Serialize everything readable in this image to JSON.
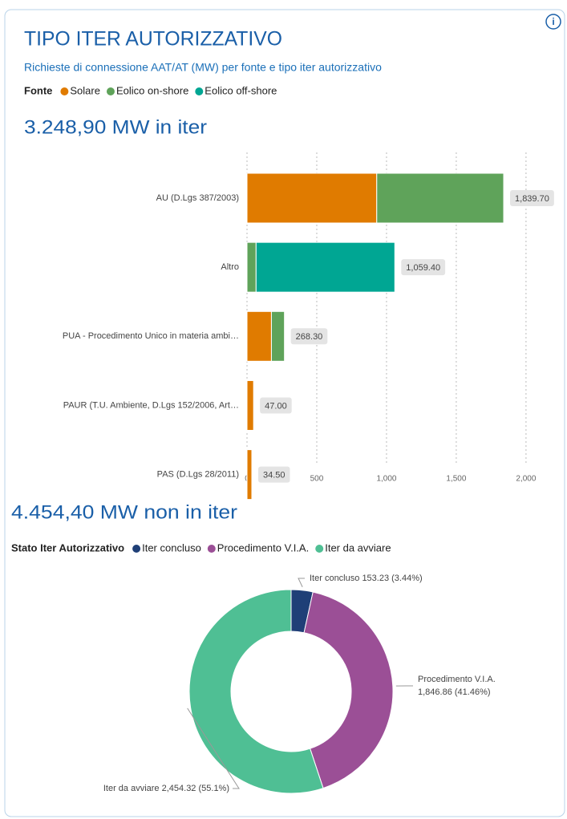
{
  "header": {
    "title": "TIPO ITER AUTORIZZATIVO",
    "subtitle": "Richieste di connessione AAT/AT (MW) per fonte e tipo iter autorizzativo"
  },
  "chart_data": [
    {
      "type": "hbar-stacked",
      "headline": "3.248,90 MW in iter",
      "legend_title": "Fonte",
      "categories": [
        "AU (D.Lgs 387/2003)",
        "Altro",
        "PUA - Procedimento Unico in materia ambi…",
        "PAUR (T.U. Ambiente, D.Lgs 152/2006, Art…",
        "PAS (D.Lgs 28/2011)"
      ],
      "series": [
        {
          "name": "Solare",
          "color": "#e07b00",
          "values": [
            930,
            0,
            175,
            47,
            34.5
          ]
        },
        {
          "name": "Eolico on-shore",
          "color": "#5fa35a",
          "values": [
            909.7,
            65,
            93.3,
            0,
            0
          ]
        },
        {
          "name": "Eolico off-shore",
          "color": "#00a693",
          "values": [
            0,
            994.4,
            0,
            0,
            0
          ]
        }
      ],
      "totals": [
        1839.7,
        1059.4,
        268.3,
        47,
        34.5
      ],
      "total_labels": [
        "1,839.70",
        "1,059.40",
        "268.30",
        "47.00",
        "34.50"
      ],
      "xlim": [
        0,
        2150
      ],
      "xticks": [
        0,
        500,
        {
          "value": 1000,
          "label": "1,000"
        },
        {
          "value": 1500,
          "label": "1,500"
        },
        {
          "value": 2000,
          "label": "2,000"
        }
      ],
      "grid": true
    },
    {
      "type": "donut",
      "headline": "4.454,40 MW non in iter",
      "legend_title": "Stato Iter Autorizzativo",
      "categories": [
        "Iter concluso",
        "Procedimento V.I.A.",
        "Iter da avviare"
      ],
      "values": [
        153.23,
        1846.86,
        2454.32
      ],
      "value_labels": [
        "153.23 (3.44%)",
        "1,846.86 (41.46%)",
        "2,454.32 (55.1%)"
      ],
      "colors": [
        "#1f3f77",
        "#9b4f96",
        "#4fbf94"
      ]
    }
  ]
}
